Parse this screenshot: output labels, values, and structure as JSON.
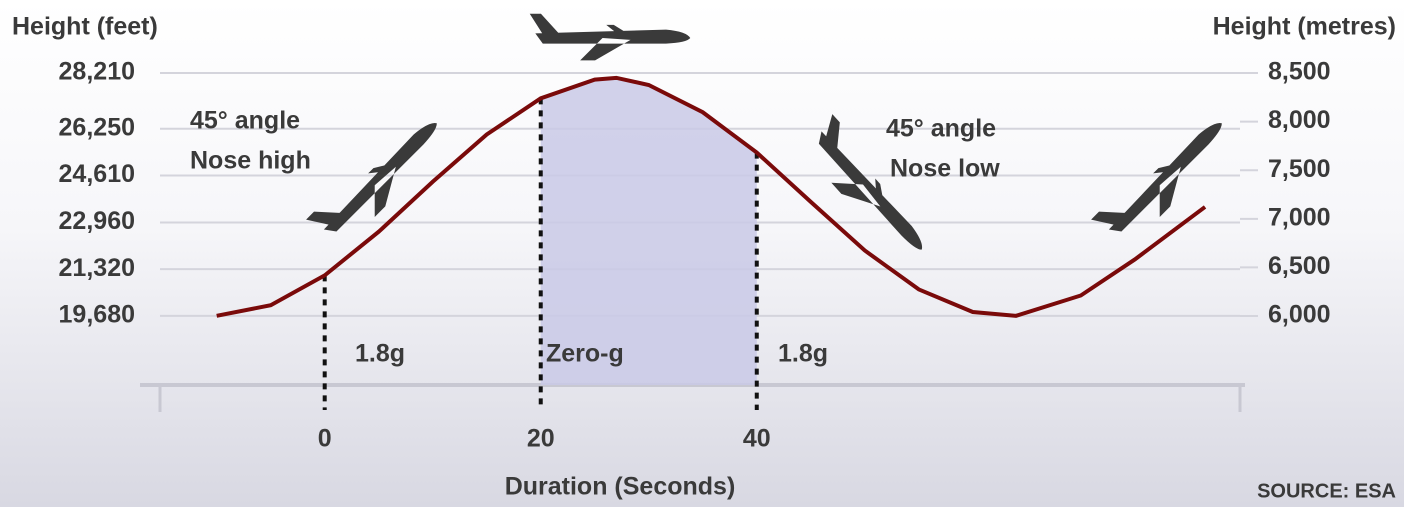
{
  "chart_data": {
    "type": "line",
    "y_label_left": "Height (feet)",
    "y_label_right": "Height (metres)",
    "x_label": "Duration (Seconds)",
    "source": "SOURCE: ESA",
    "annotations": {
      "nose_high": [
        "45° angle",
        "Nose high"
      ],
      "nose_low": [
        "45° angle",
        "Nose low"
      ],
      "phases": [
        "1.8g",
        "Zero-g",
        "1.8g"
      ]
    },
    "x": [
      -10,
      -5,
      0,
      5,
      10,
      15,
      20,
      25,
      27,
      30,
      35,
      40,
      45,
      50,
      55,
      60,
      64,
      70,
      75,
      81.5
    ],
    "values": [
      19680,
      20052,
      21101,
      22635,
      24391,
      26050,
      27321,
      27977,
      28040,
      27789,
      26832,
      25415,
      23684,
      21975,
      20608,
      19814,
      19680,
      20395,
      21661,
      23505
    ],
    "color": "#7a0a0a",
    "shade_between": [
      20,
      40
    ],
    "shade_color": "#c9c9e6",
    "xlim": [
      -17.1,
      85.2
    ],
    "xticks": [
      0,
      20,
      40
    ],
    "ylim": [
      17250,
      29370
    ],
    "yticks": [
      {
        "value": 19680,
        "label": "19,680"
      },
      {
        "value": 21320,
        "label": "21,320"
      },
      {
        "value": 22960,
        "label": "22,960"
      },
      {
        "value": 24610,
        "label": "24,610"
      },
      {
        "value": 26250,
        "label": "26,250"
      },
      {
        "value": 28210,
        "label": "28,210"
      }
    ],
    "y2lim": [
      5290,
      8840
    ],
    "y2ticks": [
      {
        "value": 6000,
        "label": "6,000"
      },
      {
        "value": 6500,
        "label": "6,500"
      },
      {
        "value": 7000,
        "label": "7,000"
      },
      {
        "value": 7500,
        "label": "7,500"
      },
      {
        "value": 8000,
        "label": "8,000"
      },
      {
        "value": 8500,
        "label": "8,500"
      }
    ],
    "grid": true
  }
}
